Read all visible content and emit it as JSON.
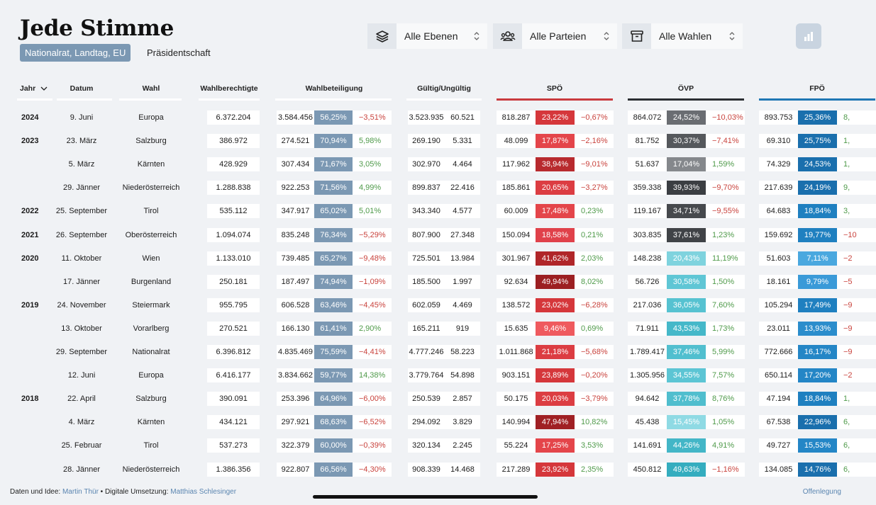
{
  "app": {
    "title": "Jede Stimme",
    "tabs": [
      "Nationalrat, Landtag, EU",
      "Präsidentschaft"
    ]
  },
  "filters": [
    {
      "icon": "layers-icon",
      "label": "Alle Ebenen"
    },
    {
      "icon": "people-icon",
      "label": "Alle Parteien"
    },
    {
      "icon": "archive-icon",
      "label": "Alle Wahlen"
    }
  ],
  "colors": {
    "accent": "#7b98b3",
    "spo": "#c93a3e",
    "ovp": "#2c2f33",
    "fpo": "#1f77b4"
  },
  "headers": {
    "jahr": "Jahr",
    "datum": "Datum",
    "wahl": "Wahl",
    "berechtigte": "Wahlberechtigte",
    "beteiligung": "Wahlbeteiligung",
    "gueltig": "Gültig/Ungültig",
    "spo": "SPÖ",
    "ovp": "ÖVP",
    "fpo": "FPÖ"
  },
  "rows": [
    {
      "jahr": "2024",
      "datum": "9. Juni",
      "wahl": "Europa",
      "berechtigte": "6.372.204",
      "wb_abs": "3.584.456",
      "wb_pct": "56,25%",
      "wb_diff": "−3,51%",
      "gueltig": "3.523.935",
      "ungueltig": "60.521",
      "spo_abs": "818.287",
      "spo_pct": "23,22%",
      "spo_diff": "−0,67%",
      "spo_color": "#d5373b",
      "ovp_abs": "864.072",
      "ovp_pct": "24,52%",
      "ovp_diff": "−10,03%",
      "ovp_color": "#6a6d72",
      "fpo_abs": "893.753",
      "fpo_pct": "25,36%",
      "fpo_diff": "8,",
      "fpo_color": "#1a6fad"
    },
    {
      "jahr": "2023",
      "datum": "23. März",
      "wahl": "Salzburg",
      "berechtigte": "386.972",
      "wb_abs": "274.521",
      "wb_pct": "70,94%",
      "wb_diff": "5,98%",
      "gueltig": "269.190",
      "ungueltig": "5.331",
      "spo_abs": "48.099",
      "spo_pct": "17,87%",
      "spo_diff": "−2,16%",
      "spo_color": "#e4454a",
      "ovp_abs": "81.752",
      "ovp_pct": "30,37%",
      "ovp_diff": "−7,41%",
      "ovp_color": "#55585c",
      "fpo_abs": "69.310",
      "fpo_pct": "25,75%",
      "fpo_diff": "1,",
      "fpo_color": "#1a6fad"
    },
    {
      "jahr": "",
      "datum": "5. März",
      "wahl": "Kärnten",
      "berechtigte": "428.929",
      "wb_abs": "307.434",
      "wb_pct": "71,67%",
      "wb_diff": "3,05%",
      "gueltig": "302.970",
      "ungueltig": "4.464",
      "spo_abs": "117.962",
      "spo_pct": "38,94%",
      "spo_diff": "−9,01%",
      "spo_color": "#b82a2e",
      "ovp_abs": "51.637",
      "ovp_pct": "17,04%",
      "ovp_diff": "1,59%",
      "ovp_color": "#85888c",
      "fpo_abs": "74.329",
      "fpo_pct": "24,53%",
      "fpo_diff": "1,",
      "fpo_color": "#1a6fad"
    },
    {
      "jahr": "",
      "datum": "29. Jänner",
      "wahl": "Niederösterreich",
      "berechtigte": "1.288.838",
      "wb_abs": "922.253",
      "wb_pct": "71,56%",
      "wb_diff": "4,99%",
      "gueltig": "899.837",
      "ungueltig": "22.416",
      "spo_abs": "185.861",
      "spo_pct": "20,65%",
      "spo_diff": "−3,27%",
      "spo_color": "#dc3d42",
      "ovp_abs": "359.338",
      "ovp_pct": "39,93%",
      "ovp_diff": "−9,70%",
      "ovp_color": "#3b3e42",
      "fpo_abs": "217.639",
      "fpo_pct": "24,19%",
      "fpo_diff": "9,",
      "fpo_color": "#1a6fad"
    },
    {
      "jahr": "2022",
      "datum": "25. September",
      "wahl": "Tirol",
      "berechtigte": "535.112",
      "wb_abs": "347.917",
      "wb_pct": "65,02%",
      "wb_diff": "5,01%",
      "gueltig": "343.340",
      "ungueltig": "4.577",
      "spo_abs": "60.009",
      "spo_pct": "17,48%",
      "spo_diff": "0,23%",
      "spo_color": "#e4454a",
      "ovp_abs": "119.167",
      "ovp_pct": "34,71%",
      "ovp_diff": "−9,55%",
      "ovp_color": "#46494d",
      "fpo_abs": "64.683",
      "fpo_pct": "18,84%",
      "fpo_diff": "3,",
      "fpo_color": "#1f80c0"
    },
    {
      "jahr": "2021",
      "datum": "26. September",
      "wahl": "Oberösterreich",
      "berechtigte": "1.094.074",
      "wb_abs": "835.248",
      "wb_pct": "76,34%",
      "wb_diff": "−5,29%",
      "gueltig": "807.900",
      "ungueltig": "27.348",
      "spo_abs": "150.094",
      "spo_pct": "18,58%",
      "spo_diff": "0,21%",
      "spo_color": "#e0414a",
      "ovp_abs": "303.835",
      "ovp_pct": "37,61%",
      "ovp_diff": "1,23%",
      "ovp_color": "#404347",
      "fpo_abs": "159.692",
      "fpo_pct": "19,77%",
      "fpo_diff": "−10",
      "fpo_color": "#1f80c0"
    },
    {
      "jahr": "2020",
      "datum": "11. Oktober",
      "wahl": "Wien",
      "berechtigte": "1.133.010",
      "wb_abs": "739.485",
      "wb_pct": "65,27%",
      "wb_diff": "−9,48%",
      "gueltig": "725.501",
      "ungueltig": "13.984",
      "spo_abs": "301.967",
      "spo_pct": "41,62%",
      "spo_diff": "2,03%",
      "spo_color": "#b02629",
      "ovp_abs": "148.238",
      "ovp_pct": "20,43%",
      "ovp_diff": "11,19%",
      "ovp_color": "#7fd3de",
      "fpo_abs": "51.603",
      "fpo_pct": "7,11%",
      "fpo_diff": "−2",
      "fpo_color": "#4aa8df"
    },
    {
      "jahr": "",
      "datum": "17. Jänner",
      "wahl": "Burgenland",
      "berechtigte": "250.181",
      "wb_abs": "187.497",
      "wb_pct": "74,94%",
      "wb_diff": "−1,09%",
      "gueltig": "185.500",
      "ungueltig": "1.997",
      "spo_abs": "92.634",
      "spo_pct": "49,94%",
      "spo_diff": "8,02%",
      "spo_color": "#9c1f22",
      "ovp_abs": "56.726",
      "ovp_pct": "30,58%",
      "ovp_diff": "1,50%",
      "ovp_color": "#5fc6d5",
      "fpo_abs": "18.161",
      "fpo_pct": "9,79%",
      "fpo_diff": "−5",
      "fpo_color": "#3a9ad8"
    },
    {
      "jahr": "2019",
      "datum": "24. November",
      "wahl": "Steiermark",
      "berechtigte": "955.795",
      "wb_abs": "606.528",
      "wb_pct": "63,46%",
      "wb_diff": "−4,45%",
      "gueltig": "602.059",
      "ungueltig": "4.469",
      "spo_abs": "138.572",
      "spo_pct": "23,02%",
      "spo_diff": "−6,28%",
      "spo_color": "#d5373b",
      "ovp_abs": "217.036",
      "ovp_pct": "36,05%",
      "ovp_diff": "7,60%",
      "ovp_color": "#56c2d1",
      "fpo_abs": "105.294",
      "fpo_pct": "17,49%",
      "fpo_diff": "−9",
      "fpo_color": "#1f80c0"
    },
    {
      "jahr": "",
      "datum": "13. Oktober",
      "wahl": "Vorarlberg",
      "berechtigte": "270.521",
      "wb_abs": "166.130",
      "wb_pct": "61,41%",
      "wb_diff": "2,90%",
      "gueltig": "165.211",
      "ungueltig": "919",
      "spo_abs": "15.635",
      "spo_pct": "9,46%",
      "spo_diff": "0,69%",
      "spo_color": "#ef5a5e",
      "ovp_abs": "71.911",
      "ovp_pct": "43,53%",
      "ovp_diff": "1,73%",
      "ovp_color": "#45b8c9",
      "fpo_abs": "23.011",
      "fpo_pct": "13,93%",
      "fpo_diff": "−9",
      "fpo_color": "#2b8dcc"
    },
    {
      "jahr": "",
      "datum": "29. September",
      "wahl": "Nationalrat",
      "berechtigte": "6.396.812",
      "wb_abs": "4.835.469",
      "wb_pct": "75,59%",
      "wb_diff": "−4,41%",
      "gueltig": "4.777.246",
      "ungueltig": "58.223",
      "spo_abs": "1.011.868",
      "spo_pct": "21,18%",
      "spo_diff": "−5,68%",
      "spo_color": "#dc3d42",
      "ovp_abs": "1.789.417",
      "ovp_pct": "37,46%",
      "ovp_diff": "5,99%",
      "ovp_color": "#51bfcf",
      "fpo_abs": "772.666",
      "fpo_pct": "16,17%",
      "fpo_diff": "−9",
      "fpo_color": "#2486c6"
    },
    {
      "jahr": "",
      "datum": "12. Juni",
      "wahl": "Europa",
      "berechtigte": "6.416.177",
      "wb_abs": "3.834.662",
      "wb_pct": "59,77%",
      "wb_diff": "14,38%",
      "gueltig": "3.779.764",
      "ungueltig": "54.898",
      "spo_abs": "903.151",
      "spo_pct": "23,89%",
      "spo_diff": "−0,20%",
      "spo_color": "#d5373b",
      "ovp_abs": "1.305.956",
      "ovp_pct": "34,55%",
      "ovp_diff": "7,57%",
      "ovp_color": "#5cc5d4",
      "fpo_abs": "650.114",
      "fpo_pct": "17,20%",
      "fpo_diff": "−2",
      "fpo_color": "#2486c6"
    },
    {
      "jahr": "2018",
      "datum": "22. April",
      "wahl": "Salzburg",
      "berechtigte": "390.091",
      "wb_abs": "253.396",
      "wb_pct": "64,96%",
      "wb_diff": "−6,00%",
      "gueltig": "250.539",
      "ungueltig": "2.857",
      "spo_abs": "50.175",
      "spo_pct": "20,03%",
      "spo_diff": "−3,79%",
      "spo_color": "#dc3d42",
      "ovp_abs": "94.642",
      "ovp_pct": "37,78%",
      "ovp_diff": "8,76%",
      "ovp_color": "#50bece",
      "fpo_abs": "47.194",
      "fpo_pct": "18,84%",
      "fpo_diff": "1,",
      "fpo_color": "#1f80c0"
    },
    {
      "jahr": "",
      "datum": "4. März",
      "wahl": "Kärnten",
      "berechtigte": "434.121",
      "wb_abs": "297.921",
      "wb_pct": "68,63%",
      "wb_diff": "−6,52%",
      "gueltig": "294.092",
      "ungueltig": "3.829",
      "spo_abs": "140.994",
      "spo_pct": "47,94%",
      "spo_diff": "10,82%",
      "spo_color": "#a02024",
      "ovp_abs": "45.438",
      "ovp_pct": "15,45%",
      "ovp_diff": "1,05%",
      "ovp_color": "#8fdae4",
      "fpo_abs": "67.538",
      "fpo_pct": "22,96%",
      "fpo_diff": "6,",
      "fpo_color": "#1a6fad"
    },
    {
      "jahr": "",
      "datum": "25. Februar",
      "wahl": "Tirol",
      "berechtigte": "537.273",
      "wb_abs": "322.379",
      "wb_pct": "60,00%",
      "wb_diff": "−0,39%",
      "gueltig": "320.134",
      "ungueltig": "2.245",
      "spo_abs": "55.224",
      "spo_pct": "17,25%",
      "spo_diff": "3,53%",
      "spo_color": "#e4454a",
      "ovp_abs": "141.691",
      "ovp_pct": "44,26%",
      "ovp_diff": "4,91%",
      "ovp_color": "#43b6c7",
      "fpo_abs": "49.727",
      "fpo_pct": "15,53%",
      "fpo_diff": "6,",
      "fpo_color": "#2486c6"
    },
    {
      "jahr": "",
      "datum": "28. Jänner",
      "wahl": "Niederösterreich",
      "berechtigte": "1.386.356",
      "wb_abs": "922.807",
      "wb_pct": "66,56%",
      "wb_diff": "−4,30%",
      "gueltig": "908.339",
      "ungueltig": "14.468",
      "spo_abs": "217.289",
      "spo_pct": "23,92%",
      "spo_diff": "2,35%",
      "spo_color": "#d5373b",
      "ovp_abs": "450.812",
      "ovp_pct": "49,63%",
      "ovp_diff": "−1,16%",
      "ovp_color": "#34adbf",
      "fpo_abs": "134.085",
      "fpo_pct": "14,76%",
      "fpo_diff": "6,",
      "fpo_color": "#1a6fad"
    }
  ],
  "footer": {
    "prefix1": "Daten und Idee: ",
    "author1": "Martin Thür",
    "prefix2": " • Digitale Umsetzung: ",
    "author2": "Matthias Schlesinger",
    "right": "Offenlegung"
  }
}
